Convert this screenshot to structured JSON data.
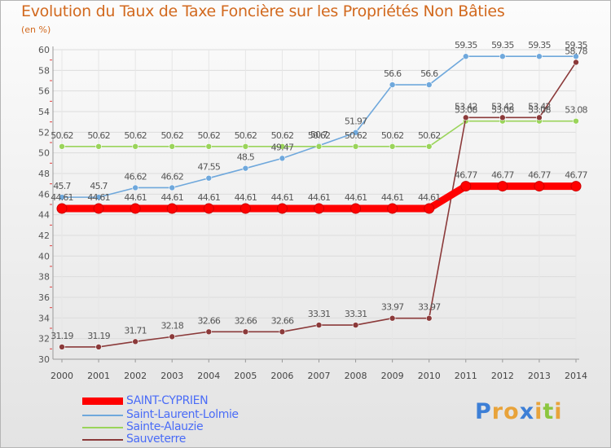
{
  "title": "Evolution du Taux de Taxe Foncière sur les Propriétés Non Bâties",
  "subtitle": "(en %)",
  "logo": "Proxiti",
  "chart_data": {
    "type": "line",
    "title": "Evolution du Taux de Taxe Foncière sur les Propriétés Non Bâties",
    "ylabel": "(en %)",
    "xlabel": "",
    "ylim": [
      30,
      60
    ],
    "yticks": [
      30,
      32,
      34,
      36,
      38,
      40,
      42,
      44,
      46,
      48,
      50,
      52,
      54,
      56,
      58,
      60
    ],
    "categories": [
      "2000",
      "2001",
      "2002",
      "2003",
      "2004",
      "2005",
      "2006",
      "2007",
      "2008",
      "2009",
      "2010",
      "2011",
      "2012",
      "2013",
      "2014"
    ],
    "series": [
      {
        "name": "SAINT-CYPRIEN",
        "color": "#ff0000",
        "values": [
          44.61,
          44.61,
          44.61,
          44.61,
          44.61,
          44.61,
          44.61,
          44.61,
          44.61,
          44.61,
          44.61,
          46.77,
          46.77,
          46.77,
          46.77
        ],
        "labels": [
          "44.61",
          "44.61",
          "44.61",
          "44.61",
          "44.61",
          "44.61",
          "44.61",
          "44.61",
          "44.61",
          "44.61",
          "44.61",
          "46.77",
          "46.77",
          "46.77",
          "46.77"
        ]
      },
      {
        "name": "Saint-Laurent-Lolmie",
        "color": "#6fa8dc",
        "values": [
          45.7,
          45.7,
          46.62,
          46.62,
          47.55,
          48.5,
          49.47,
          50.7,
          51.97,
          56.6,
          56.6,
          59.35,
          59.35,
          59.35,
          59.35
        ],
        "labels": [
          "45.7",
          "45.7",
          "46.62",
          "46.62",
          "47.55",
          "48.5",
          "49.47",
          "50.7",
          "51.97",
          "56.6",
          "56.6",
          "59.35",
          "59.35",
          "59.35",
          "59.35"
        ]
      },
      {
        "name": "Sainte-Alauzie",
        "color": "#9ad45a",
        "values": [
          50.62,
          50.62,
          50.62,
          50.62,
          50.62,
          50.62,
          50.62,
          50.62,
          50.62,
          50.62,
          50.62,
          53.08,
          53.08,
          53.08,
          53.08
        ],
        "labels": [
          "50.62",
          "50.62",
          "50.62",
          "50.62",
          "50.62",
          "50.62",
          "50.62",
          "50.62",
          "50.62",
          "50.62",
          "50.62",
          "53.08",
          "53.08",
          "53.08",
          "53.08"
        ]
      },
      {
        "name": "Sauveterre",
        "color": "#8b3a3a",
        "values": [
          31.19,
          31.19,
          31.71,
          32.18,
          32.66,
          32.66,
          32.66,
          33.31,
          33.31,
          33.97,
          33.97,
          53.42,
          53.42,
          53.42,
          58.78
        ],
        "labels": [
          "31.19",
          "31.19",
          "31.71",
          "32.18",
          "32.66",
          "32.66",
          "32.66",
          "33.31",
          "33.31",
          "33.97",
          "33.97",
          "53.42",
          "53.42",
          "53.42",
          "58.78"
        ]
      }
    ]
  }
}
